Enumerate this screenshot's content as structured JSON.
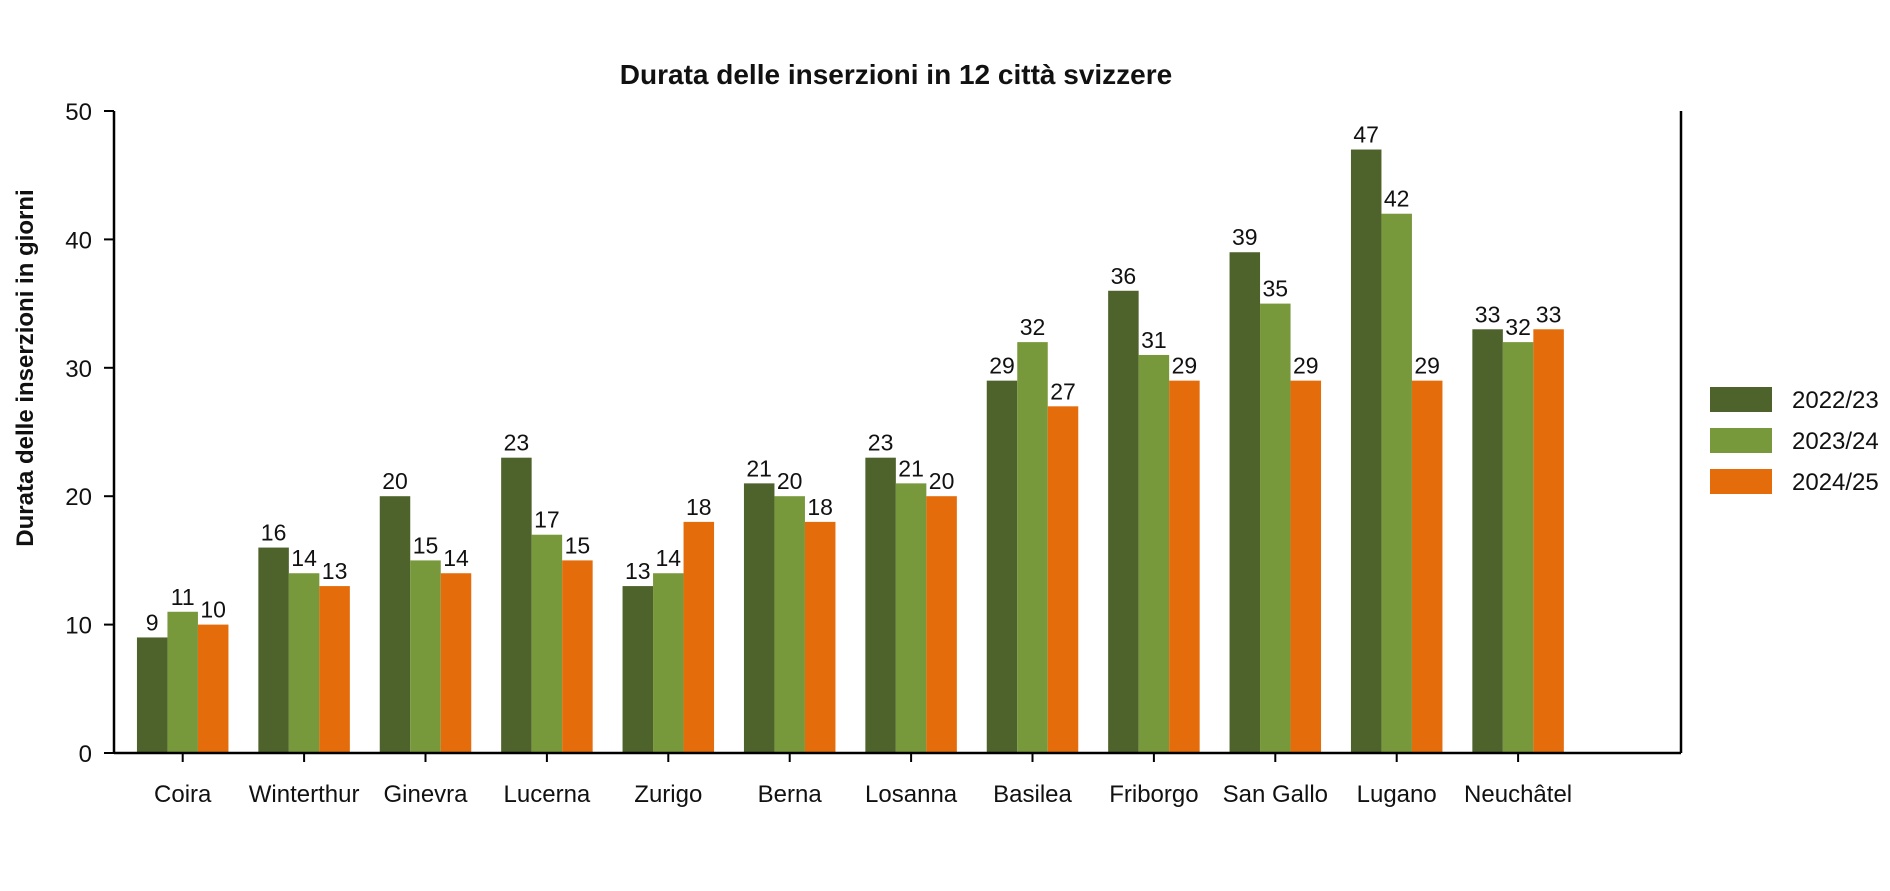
{
  "chart_data": {
    "type": "bar",
    "title": "Durata delle inserzioni in 12 città svizzere",
    "xlabel": "",
    "ylabel": "Durata delle inserzioni in giorni",
    "ylim": [
      0,
      50
    ],
    "yticks": [
      0,
      10,
      20,
      30,
      40,
      50
    ],
    "grid": false,
    "legend_position": "right",
    "categories": [
      "Coira",
      "Winterthur",
      "Ginevra",
      "Lucerna",
      "Zurigo",
      "Berna",
      "Losanna",
      "Basilea",
      "Friborgo",
      "San Gallo",
      "Lugano",
      "Neuchâtel"
    ],
    "series": [
      {
        "name": "2022/23",
        "color": "#4e632b",
        "values": [
          9,
          16,
          20,
          23,
          13,
          21,
          23,
          29,
          36,
          39,
          47,
          33
        ]
      },
      {
        "name": "2023/24",
        "color": "#78983c",
        "values": [
          11,
          14,
          15,
          17,
          14,
          20,
          21,
          32,
          31,
          35,
          42,
          32
        ]
      },
      {
        "name": "2024/25",
        "color": "#e46c0a",
        "values": [
          10,
          13,
          14,
          15,
          18,
          18,
          20,
          27,
          29,
          29,
          29,
          33
        ]
      }
    ]
  }
}
